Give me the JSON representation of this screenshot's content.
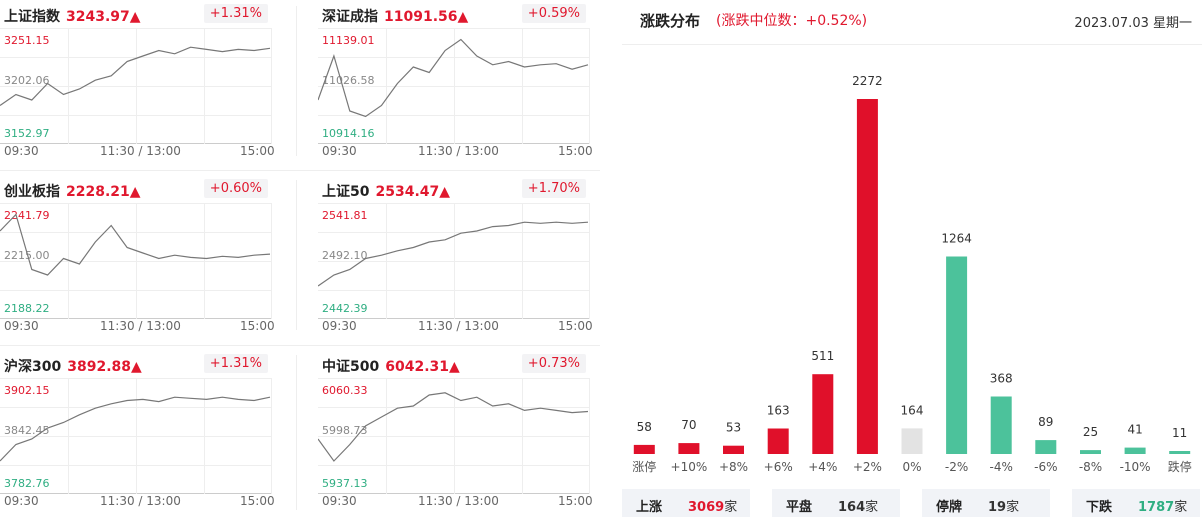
{
  "indices": [
    {
      "name": "上证指数",
      "price": "3243.97▲",
      "pct": "+1.31%",
      "y_top": "3251.15",
      "y_mid": "3202.06",
      "y_bot": "3152.97"
    },
    {
      "name": "深证成指",
      "price": "11091.56▲",
      "pct": "+0.59%",
      "y_top": "11139.01",
      "y_mid": "11026.58",
      "y_bot": "10914.16"
    },
    {
      "name": "创业板指",
      "price": "2228.21▲",
      "pct": "+0.60%",
      "y_top": "2241.79",
      "y_mid": "2215.00",
      "y_bot": "2188.22"
    },
    {
      "name": "上证50",
      "price": "2534.47▲",
      "pct": "+1.70%",
      "y_top": "2541.81",
      "y_mid": "2492.10",
      "y_bot": "2442.39"
    },
    {
      "name": "沪深300",
      "price": "3892.88▲",
      "pct": "+1.31%",
      "y_top": "3902.15",
      "y_mid": "3842.45",
      "y_bot": "3782.76"
    },
    {
      "name": "中证500",
      "price": "6042.31▲",
      "pct": "+0.73%",
      "y_top": "6060.33",
      "y_mid": "5998.73",
      "y_bot": "5937.13"
    }
  ],
  "time_axis": {
    "start": "09:30",
    "mid": "11:30 / 13:00",
    "end": "15:00"
  },
  "distribution": {
    "title": "涨跌分布",
    "subtitle": "(涨跌中位数：+0.52%)",
    "date": "2023.07.03 星期一"
  },
  "chart_data": {
    "type": "bar",
    "categories": [
      "涨停",
      "+10%",
      "+8%",
      "+6%",
      "+4%",
      "+2%",
      "0%",
      "-2%",
      "-4%",
      "-6%",
      "-8%",
      "-10%",
      "跌停"
    ],
    "values": [
      58,
      70,
      53,
      163,
      511,
      2272,
      164,
      1264,
      368,
      89,
      25,
      41,
      11
    ],
    "value_labels": [
      "58",
      "70",
      "53",
      "163",
      "511",
      "2272",
      "164",
      "1264",
      "368",
      "89",
      "25",
      "41",
      "11"
    ],
    "colors": [
      "#e0102a",
      "#e0102a",
      "#e0102a",
      "#e0102a",
      "#e0102a",
      "#e0102a",
      "#e3e3e3",
      "#4cc29b",
      "#4cc29b",
      "#4cc29b",
      "#4cc29b",
      "#4cc29b",
      "#4cc29b"
    ],
    "ylim": [
      0,
      2272
    ]
  },
  "summary": [
    {
      "label": "上涨",
      "value": "3069",
      "unit": "家",
      "color": "#e0182e"
    },
    {
      "label": "平盘",
      "value": "164",
      "unit": "家",
      "color": "#333333"
    },
    {
      "label": "停牌",
      "value": "19",
      "unit": "家",
      "color": "#333333"
    },
    {
      "label": "下跌",
      "value": "1787",
      "unit": "家",
      "color": "#2fae82"
    }
  ]
}
